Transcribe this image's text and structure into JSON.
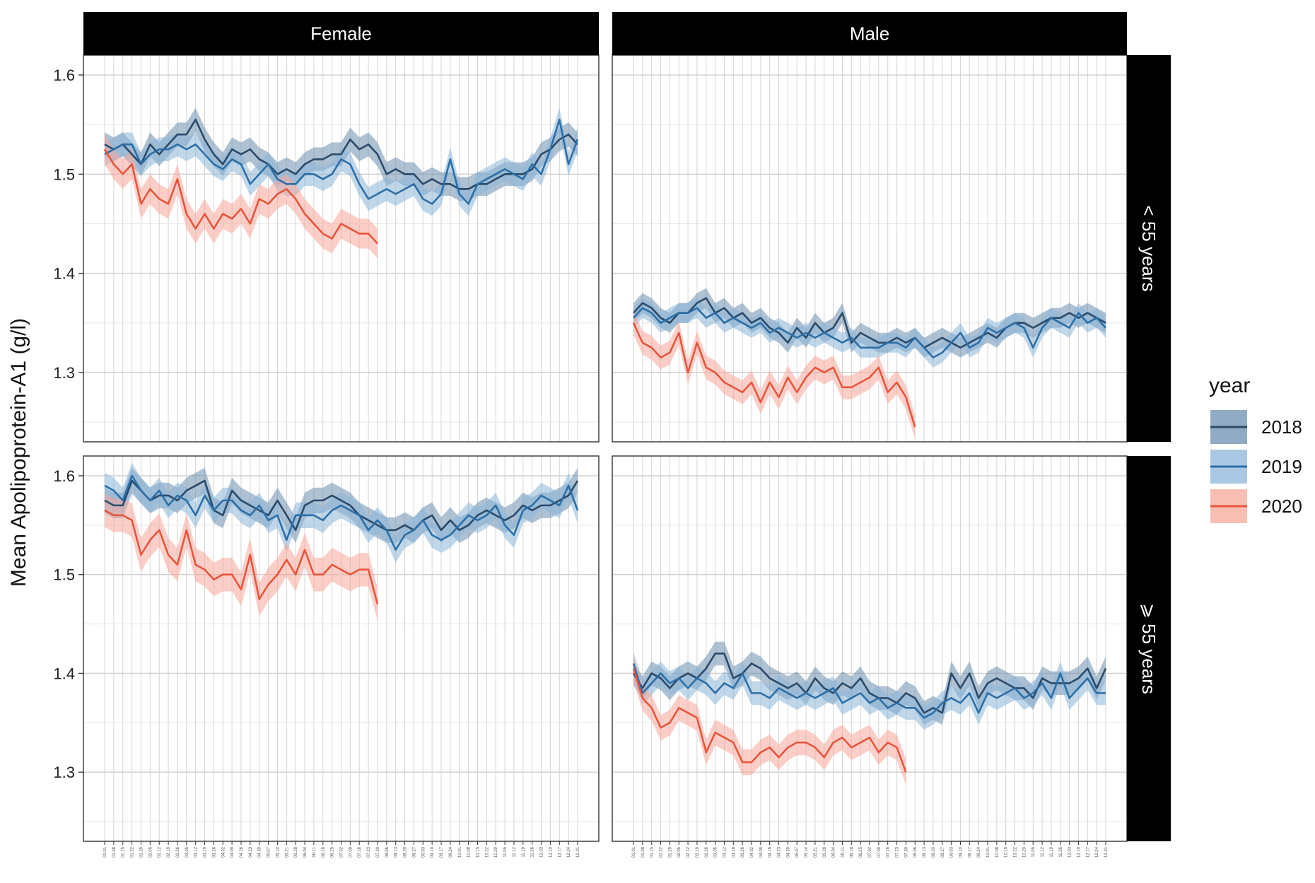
{
  "chart_data": {
    "type": "line",
    "ylabel": "Mean Apolipoprotein-A1 (g/l)",
    "xlabel": "",
    "y_ticks": [
      1.3,
      1.4,
      1.5,
      1.6
    ],
    "columns": [
      "Female",
      "Male"
    ],
    "rows": [
      "< 55 years",
      "⩾ 55 years"
    ],
    "x_points": 53,
    "x_tick_labels": [
      "01.01",
      "01.08",
      "01.15",
      "01.22",
      "01.29",
      "02.05",
      "02.12",
      "02.19",
      "02.26",
      "03.05",
      "03.12",
      "03.19",
      "03.26",
      "04.02",
      "04.09",
      "04.16",
      "04.23",
      "04.30",
      "05.07",
      "05.14",
      "05.21",
      "05.28",
      "06.04",
      "06.11",
      "06.18",
      "06.25",
      "07.02",
      "07.09",
      "07.16",
      "07.23",
      "07.30",
      "08.06",
      "08.13",
      "08.20",
      "08.27",
      "09.03",
      "09.10",
      "09.17",
      "09.24",
      "10.01",
      "10.08",
      "10.15",
      "10.22",
      "10.29",
      "11.05",
      "11.12",
      "11.19",
      "11.26",
      "12.03",
      "12.10",
      "12.17",
      "12.24",
      "12.31"
    ],
    "legend": {
      "title": "year",
      "placement": "right",
      "entries": [
        {
          "label": "2018",
          "line_color": "#2b4a6a",
          "band_color": "#6e8fb0"
        },
        {
          "label": "2019",
          "line_color": "#2c6ea6",
          "band_color": "#8db6d9"
        },
        {
          "label": "2020",
          "line_color": "#e8553d",
          "band_color": "#f7a89a"
        }
      ]
    },
    "grid": true,
    "panels": [
      {
        "column": "Female",
        "row": "< 55 years",
        "ylim": [
          1.23,
          1.62
        ],
        "series": [
          {
            "name": "2018",
            "values": [
              1.53,
              1.525,
              1.53,
              1.52,
              1.51,
              1.53,
              1.52,
              1.53,
              1.54,
              1.54,
              1.555,
              1.535,
              1.52,
              1.51,
              1.525,
              1.52,
              1.525,
              1.515,
              1.51,
              1.5,
              1.505,
              1.5,
              1.51,
              1.515,
              1.515,
              1.52,
              1.52,
              1.535,
              1.525,
              1.53,
              1.52,
              1.5,
              1.505,
              1.5,
              1.5,
              1.49,
              1.495,
              1.49,
              1.49,
              1.485,
              1.485,
              1.49,
              1.49,
              1.495,
              1.5,
              1.5,
              1.5,
              1.505,
              1.52,
              1.525,
              1.535,
              1.54,
              1.53
            ],
            "band": 0.012
          },
          {
            "name": "2019",
            "values": [
              1.52,
              1.525,
              1.53,
              1.53,
              1.51,
              1.52,
              1.525,
              1.525,
              1.53,
              1.525,
              1.53,
              1.52,
              1.51,
              1.505,
              1.515,
              1.51,
              1.49,
              1.5,
              1.51,
              1.495,
              1.49,
              1.49,
              1.5,
              1.5,
              1.495,
              1.5,
              1.515,
              1.51,
              1.49,
              1.475,
              1.48,
              1.485,
              1.48,
              1.485,
              1.49,
              1.475,
              1.47,
              1.48,
              1.515,
              1.48,
              1.47,
              1.49,
              1.495,
              1.5,
              1.505,
              1.5,
              1.495,
              1.51,
              1.5,
              1.525,
              1.555,
              1.51,
              1.535
            ],
            "band": 0.012
          },
          {
            "name": "2020",
            "values": [
              1.525,
              1.51,
              1.5,
              1.51,
              1.47,
              1.485,
              1.475,
              1.47,
              1.495,
              1.46,
              1.445,
              1.46,
              1.445,
              1.46,
              1.455,
              1.465,
              1.45,
              1.475,
              1.47,
              1.48,
              1.485,
              1.475,
              1.46,
              1.45,
              1.44,
              1.435,
              1.45,
              1.445,
              1.44,
              1.44,
              1.43
            ],
            "band": 0.015
          }
        ]
      },
      {
        "column": "Male",
        "row": "< 55 years",
        "ylim": [
          1.23,
          1.62
        ],
        "series": [
          {
            "name": "2018",
            "values": [
              1.36,
              1.37,
              1.365,
              1.355,
              1.35,
              1.36,
              1.36,
              1.37,
              1.375,
              1.36,
              1.365,
              1.355,
              1.36,
              1.35,
              1.355,
              1.345,
              1.34,
              1.33,
              1.345,
              1.335,
              1.35,
              1.34,
              1.345,
              1.36,
              1.33,
              1.34,
              1.335,
              1.33,
              1.33,
              1.335,
              1.33,
              1.335,
              1.325,
              1.33,
              1.335,
              1.33,
              1.325,
              1.33,
              1.335,
              1.34,
              1.335,
              1.345,
              1.35,
              1.35,
              1.345,
              1.35,
              1.355,
              1.355,
              1.36,
              1.355,
              1.36,
              1.355,
              1.35
            ],
            "band": 0.01
          },
          {
            "name": "2019",
            "values": [
              1.355,
              1.365,
              1.36,
              1.35,
              1.355,
              1.36,
              1.36,
              1.365,
              1.355,
              1.36,
              1.35,
              1.355,
              1.35,
              1.345,
              1.35,
              1.34,
              1.345,
              1.34,
              1.335,
              1.34,
              1.335,
              1.34,
              1.335,
              1.33,
              1.335,
              1.325,
              1.325,
              1.325,
              1.33,
              1.33,
              1.325,
              1.335,
              1.325,
              1.315,
              1.32,
              1.33,
              1.34,
              1.325,
              1.33,
              1.345,
              1.34,
              1.345,
              1.35,
              1.345,
              1.325,
              1.345,
              1.355,
              1.35,
              1.345,
              1.36,
              1.35,
              1.355,
              1.345
            ],
            "band": 0.01
          },
          {
            "name": "2020",
            "values": [
              1.35,
              1.33,
              1.325,
              1.315,
              1.32,
              1.34,
              1.3,
              1.33,
              1.305,
              1.3,
              1.29,
              1.285,
              1.28,
              1.29,
              1.27,
              1.29,
              1.275,
              1.295,
              1.28,
              1.295,
              1.305,
              1.3,
              1.305,
              1.285,
              1.285,
              1.29,
              1.295,
              1.305,
              1.28,
              1.29,
              1.275,
              1.245
            ],
            "band": 0.012
          }
        ]
      },
      {
        "column": "Female",
        "row": "⩾ 55 years",
        "ylim": [
          1.23,
          1.62
        ],
        "series": [
          {
            "name": "2018",
            "values": [
              1.575,
              1.57,
              1.57,
              1.595,
              1.585,
              1.575,
              1.58,
              1.58,
              1.575,
              1.585,
              1.59,
              1.595,
              1.565,
              1.56,
              1.585,
              1.575,
              1.57,
              1.565,
              1.56,
              1.575,
              1.56,
              1.545,
              1.57,
              1.575,
              1.575,
              1.58,
              1.575,
              1.57,
              1.56,
              1.555,
              1.55,
              1.545,
              1.545,
              1.55,
              1.545,
              1.555,
              1.56,
              1.545,
              1.555,
              1.545,
              1.55,
              1.56,
              1.565,
              1.56,
              1.555,
              1.56,
              1.57,
              1.565,
              1.57,
              1.57,
              1.575,
              1.58,
              1.595
            ],
            "band": 0.013
          },
          {
            "name": "2019",
            "values": [
              1.59,
              1.585,
              1.575,
              1.6,
              1.585,
              1.575,
              1.585,
              1.57,
              1.58,
              1.575,
              1.56,
              1.58,
              1.565,
              1.575,
              1.575,
              1.565,
              1.56,
              1.57,
              1.555,
              1.56,
              1.535,
              1.56,
              1.56,
              1.56,
              1.555,
              1.565,
              1.57,
              1.565,
              1.56,
              1.545,
              1.555,
              1.545,
              1.525,
              1.54,
              1.545,
              1.555,
              1.54,
              1.535,
              1.54,
              1.55,
              1.56,
              1.555,
              1.56,
              1.57,
              1.55,
              1.54,
              1.565,
              1.57,
              1.58,
              1.575,
              1.57,
              1.59,
              1.565
            ],
            "band": 0.013
          },
          {
            "name": "2020",
            "values": [
              1.565,
              1.56,
              1.56,
              1.555,
              1.52,
              1.535,
              1.545,
              1.52,
              1.51,
              1.545,
              1.51,
              1.505,
              1.495,
              1.5,
              1.5,
              1.485,
              1.52,
              1.475,
              1.49,
              1.5,
              1.515,
              1.5,
              1.525,
              1.5,
              1.5,
              1.51,
              1.505,
              1.5,
              1.505,
              1.505,
              1.47
            ],
            "band": 0.017
          }
        ]
      },
      {
        "column": "Male",
        "row": "⩾ 55 years",
        "ylim": [
          1.23,
          1.62
        ],
        "series": [
          {
            "name": "2018",
            "values": [
              1.4,
              1.385,
              1.4,
              1.395,
              1.385,
              1.395,
              1.4,
              1.395,
              1.405,
              1.42,
              1.42,
              1.395,
              1.4,
              1.41,
              1.405,
              1.395,
              1.39,
              1.385,
              1.39,
              1.38,
              1.395,
              1.385,
              1.38,
              1.39,
              1.385,
              1.395,
              1.38,
              1.375,
              1.375,
              1.37,
              1.38,
              1.375,
              1.36,
              1.365,
              1.36,
              1.4,
              1.385,
              1.4,
              1.375,
              1.39,
              1.395,
              1.39,
              1.385,
              1.385,
              1.375,
              1.395,
              1.39,
              1.39,
              1.39,
              1.395,
              1.405,
              1.385,
              1.405
            ],
            "band": 0.012
          },
          {
            "name": "2019",
            "values": [
              1.41,
              1.38,
              1.39,
              1.4,
              1.39,
              1.395,
              1.385,
              1.395,
              1.39,
              1.38,
              1.39,
              1.385,
              1.4,
              1.38,
              1.38,
              1.375,
              1.385,
              1.38,
              1.375,
              1.38,
              1.375,
              1.38,
              1.385,
              1.37,
              1.375,
              1.38,
              1.37,
              1.375,
              1.365,
              1.37,
              1.365,
              1.365,
              1.355,
              1.36,
              1.37,
              1.375,
              1.37,
              1.38,
              1.36,
              1.38,
              1.375,
              1.38,
              1.385,
              1.375,
              1.38,
              1.39,
              1.375,
              1.4,
              1.375,
              1.385,
              1.395,
              1.38,
              1.38
            ],
            "band": 0.012
          },
          {
            "name": "2020",
            "values": [
              1.405,
              1.375,
              1.365,
              1.345,
              1.35,
              1.365,
              1.36,
              1.355,
              1.32,
              1.34,
              1.335,
              1.33,
              1.31,
              1.31,
              1.32,
              1.325,
              1.315,
              1.325,
              1.33,
              1.33,
              1.325,
              1.315,
              1.33,
              1.335,
              1.325,
              1.33,
              1.335,
              1.32,
              1.33,
              1.325,
              1.3
            ],
            "band": 0.013
          }
        ]
      }
    ]
  }
}
